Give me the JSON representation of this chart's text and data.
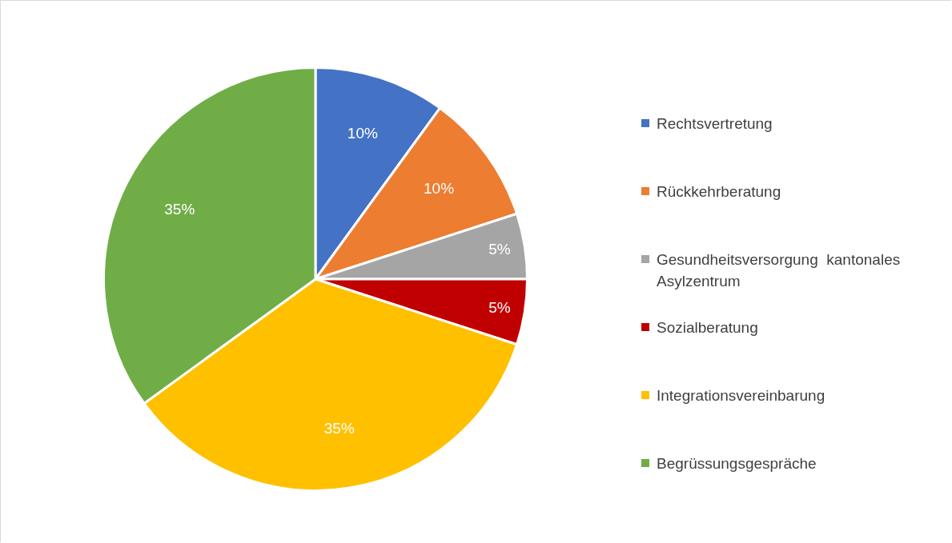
{
  "chart_data": {
    "type": "pie",
    "categories": [
      "Rechtsvertretung",
      "Rückkehrberatung",
      "Gesundheitsversorgung  kantonales Asylzentrum",
      "Sozialberatung",
      "Integrationsvereinbarung",
      "Begrüssungsgespräche"
    ],
    "values": [
      10,
      10,
      5,
      5,
      35,
      35
    ],
    "colors": [
      "#4472c4",
      "#ed7d31",
      "#a5a5a5",
      "#c00000",
      "#ffc000",
      "#70ad47"
    ],
    "value_labels": [
      "10%",
      "10%",
      "5%",
      "5%",
      "35%",
      "35%"
    ],
    "legend": "right"
  }
}
